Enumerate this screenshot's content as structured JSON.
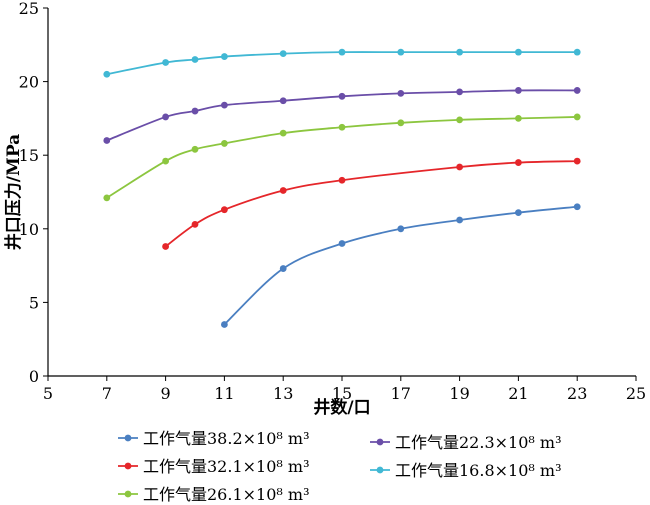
{
  "chart_data": {
    "type": "line",
    "xlabel": "井数/口",
    "ylabel": "井口压力/MPa",
    "xlim": [
      5,
      25
    ],
    "ylim": [
      0,
      25
    ],
    "xticks": [
      5,
      7,
      9,
      11,
      13,
      15,
      17,
      19,
      21,
      23,
      25
    ],
    "yticks": [
      0,
      5,
      10,
      15,
      20,
      25
    ],
    "grid": false,
    "legend_position": "bottom",
    "series": [
      {
        "name": "工作气量38.2×10⁸ m³",
        "color": "#4a7fc1",
        "x": [
          11,
          13,
          15,
          17,
          19,
          21,
          23
        ],
        "values": [
          3.5,
          7.3,
          9.0,
          10.0,
          10.6,
          11.1,
          11.5
        ]
      },
      {
        "name": "工作气量32.1×10⁸ m³",
        "color": "#e5262a",
        "x": [
          9,
          10,
          11,
          13,
          15,
          19,
          21,
          23
        ],
        "values": [
          8.8,
          10.3,
          11.3,
          12.6,
          13.3,
          14.2,
          14.5,
          14.6
        ]
      },
      {
        "name": "工作气量26.1×10⁸ m³",
        "color": "#8cc63f",
        "x": [
          7,
          9,
          10,
          11,
          13,
          15,
          17,
          19,
          21,
          23
        ],
        "values": [
          12.1,
          14.6,
          15.4,
          15.8,
          16.5,
          16.9,
          17.2,
          17.4,
          17.5,
          17.6
        ]
      },
      {
        "name": "工作气量22.3×10⁸ m³",
        "color": "#6a4ea8",
        "x": [
          7,
          9,
          10,
          11,
          13,
          15,
          17,
          19,
          21,
          23
        ],
        "values": [
          16.0,
          17.6,
          18.0,
          18.4,
          18.7,
          19.0,
          19.2,
          19.3,
          19.4,
          19.4
        ]
      },
      {
        "name": "工作气量16.8×10⁸ m³",
        "color": "#41b8d4",
        "x": [
          7,
          9,
          10,
          11,
          13,
          15,
          17,
          19,
          21,
          23
        ],
        "values": [
          20.5,
          21.3,
          21.5,
          21.7,
          21.9,
          22.0,
          22.0,
          22.0,
          22.0,
          22.0
        ]
      }
    ]
  }
}
